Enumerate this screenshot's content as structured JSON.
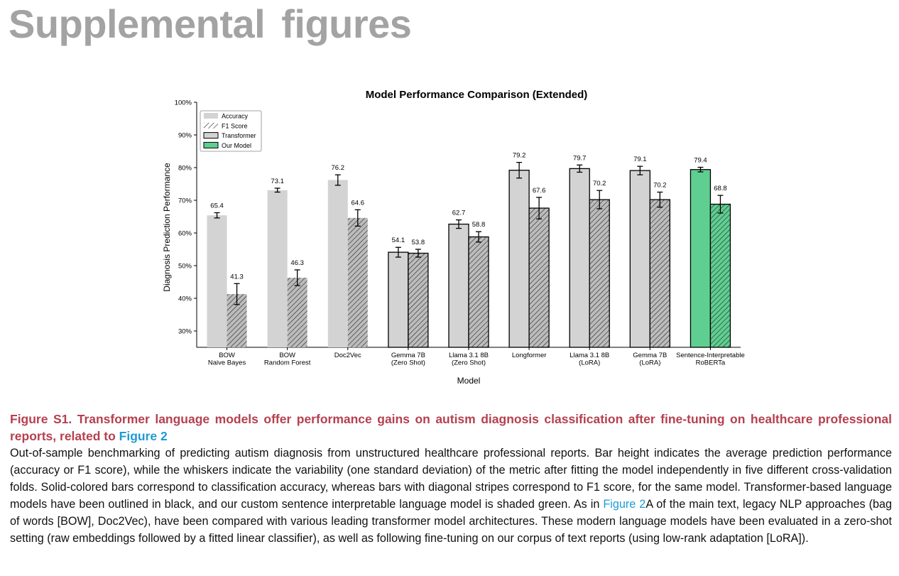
{
  "page": {
    "heading": "Supplemental figures"
  },
  "colors": {
    "accuracy_fill": "#d3d3d3",
    "f1_fill": "#bcbcbc",
    "our_model_fill": "#5fcf91",
    "outline_black": "#000000",
    "caption_title": "#b5404f",
    "link": "#1e9bd7"
  },
  "chart_data": {
    "type": "bar",
    "title": "Model Performance Comparison (Extended)",
    "xlabel": "Model",
    "ylabel": "Diagnosis Prediction Performance",
    "ylim": [
      25,
      100
    ],
    "yticks": [
      "30%",
      "40%",
      "50%",
      "60%",
      "70%",
      "80%",
      "90%",
      "100%"
    ],
    "ytick_values": [
      30,
      40,
      50,
      60,
      70,
      80,
      90,
      100
    ],
    "grid": false,
    "legend_position": "top-left",
    "legend": [
      "Accuracy",
      "F1 Score",
      "Transformer",
      "Our Model"
    ],
    "categories": [
      [
        "BOW",
        "Naive Bayes"
      ],
      [
        "BOW",
        "Random Forest"
      ],
      [
        "Doc2Vec"
      ],
      [
        "Gemma 7B",
        "(Zero Shot)"
      ],
      [
        "Llama 3.1 8B",
        "(Zero Shot)"
      ],
      [
        "Longformer"
      ],
      [
        "Llama 3.1 8B",
        "(LoRA)"
      ],
      [
        "Gemma 7B",
        "(LoRA)"
      ],
      [
        "Sentence-Interpretable",
        "RoBERTa"
      ]
    ],
    "transformer": [
      false,
      false,
      false,
      true,
      true,
      true,
      true,
      true,
      true
    ],
    "our_model": [
      false,
      false,
      false,
      false,
      false,
      false,
      false,
      false,
      true
    ],
    "series": [
      {
        "name": "Accuracy",
        "values": [
          65.4,
          73.1,
          76.2,
          54.1,
          62.7,
          79.2,
          79.7,
          79.1,
          79.4
        ],
        "labels": [
          "65.4",
          "73.1",
          "76.2",
          "54.1",
          "62.7",
          "79.2",
          "79.7",
          "79.1",
          "79.4"
        ],
        "errors": [
          0.8,
          0.6,
          1.6,
          1.5,
          1.3,
          2.4,
          1.1,
          1.3,
          0.7
        ]
      },
      {
        "name": "F1 Score",
        "values": [
          41.3,
          46.3,
          64.6,
          53.8,
          58.8,
          67.6,
          70.2,
          70.2,
          68.8
        ],
        "labels": [
          "41.3",
          "46.3",
          "64.6",
          "53.8",
          "58.8",
          "67.6",
          "70.2",
          "70.2",
          "68.8"
        ],
        "errors": [
          3.2,
          2.4,
          2.5,
          1.2,
          1.6,
          3.3,
          2.8,
          2.3,
          2.7
        ]
      }
    ]
  },
  "caption": {
    "title_main": "Figure S1. Transformer language models offer performance gains on autism diagnosis classification after fine-tuning on healthcare professional reports, related to ",
    "title_link": "Figure 2",
    "body_part1": "Out-of-sample benchmarking of predicting autism diagnosis from unstructured healthcare professional reports. Bar height indicates the average prediction performance (accuracy or F1 score), while the whiskers indicate the variability (one standard deviation) of the metric after fitting the model independently in five different cross-validation folds. Solid-colored bars correspond to classification accuracy, whereas bars with diagonal stripes correspond to F1 score, for the same model. Transformer-based language models have been outlined in black, and our custom sentence interpretable language model is shaded green. As in ",
    "body_link": "Figure 2",
    "body_part2": "A of the main text, legacy NLP approaches (bag of words [BOW], Doc2Vec), have been compared with various leading transformer model architectures. These modern language models have been evaluated in a zero-shot setting (raw embeddings followed by a fitted linear classifier), as well as following fine-tuning on our corpus of text reports (using low-rank adaptation [LoRA])."
  }
}
